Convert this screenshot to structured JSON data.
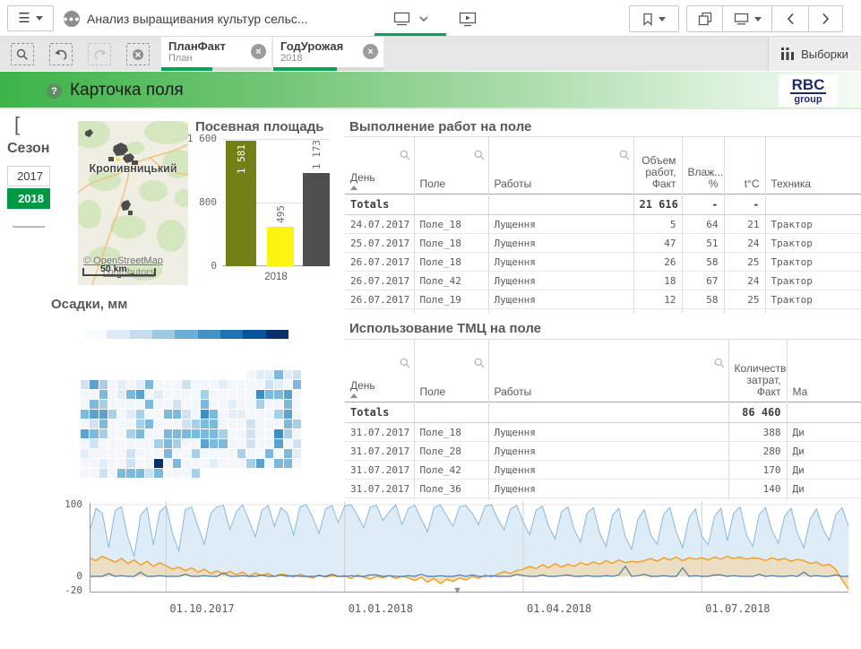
{
  "toolbar": {
    "app_title": "Анализ выращивания культур сельс...",
    "selections_label": "Выборки"
  },
  "selections_bar": {
    "chips": [
      {
        "field": "ПланФакт",
        "value": "План",
        "progress_pct": 46
      },
      {
        "field": "ГодУрожая",
        "value": "2018",
        "progress_pct": 58
      }
    ],
    "close_glyph": "×"
  },
  "sheet_header": {
    "help_glyph": "?",
    "title": "Карточка поля",
    "brand_line1": "RBC",
    "brand_line2": "group"
  },
  "left_bracket": "[",
  "season_filter": {
    "title": "Сезон",
    "options": [
      {
        "label": "2017",
        "selected": false
      },
      {
        "label": "2018",
        "selected": true
      }
    ]
  },
  "map": {
    "city_label": "Кропивницький",
    "attribution_line1": "© OpenStreetMap",
    "attribution_line2": "contributors",
    "scale_label": "50 km"
  },
  "tables": [
    {
      "id": "tbl-works",
      "title": "Выполнение работ на поле",
      "columns": [
        {
          "label": "День",
          "align": "left",
          "search": true,
          "sorted": true
        },
        {
          "label": "Поле",
          "align": "left",
          "search": true
        },
        {
          "label": "Работы",
          "align": "left",
          "search": true
        },
        {
          "label": "Объем\nработ,\nФакт",
          "align": "right"
        },
        {
          "label": "Влаж...\n%",
          "align": "right"
        },
        {
          "label": "t°C",
          "align": "right"
        },
        {
          "label": "Техника",
          "align": "left"
        }
      ],
      "totals": [
        "Totals",
        "",
        "",
        "21 616",
        "-",
        "-",
        ""
      ],
      "rows": [
        [
          "24.07.2017",
          "Поле_18",
          "Лущення",
          "5",
          "64",
          "21",
          "Трактор"
        ],
        [
          "25.07.2017",
          "Поле_18",
          "Лущення",
          "47",
          "51",
          "24",
          "Трактор"
        ],
        [
          "26.07.2017",
          "Поле_18",
          "Лущення",
          "26",
          "58",
          "25",
          "Трактор"
        ],
        [
          "26.07.2017",
          "Поле_42",
          "Лущення",
          "18",
          "67",
          "24",
          "Трактор"
        ],
        [
          "26.07.2017",
          "Поле_19",
          "Лущення",
          "12",
          "58",
          "25",
          "Трактор"
        ],
        [
          "",
          "",
          "",
          "",
          "",
          "",
          ""
        ]
      ]
    },
    {
      "id": "tbl-tmc",
      "title": "Использование ТМЦ на поле",
      "columns": [
        {
          "label": "День",
          "align": "left",
          "search": true,
          "sorted": true
        },
        {
          "label": "Поле",
          "align": "left",
          "search": true
        },
        {
          "label": "Работы",
          "align": "left",
          "search": true,
          "search_right": true
        },
        {
          "label": "Количество\nзатрат,\nФакт",
          "align": "right"
        },
        {
          "label": "Ма",
          "align": "left"
        }
      ],
      "totals": [
        "Totals",
        "",
        "",
        "86 460",
        ""
      ],
      "rows": [
        [
          "31.07.2017",
          "Поле_18",
          "Лущення",
          "388",
          "Ди"
        ],
        [
          "31.07.2017",
          "Поле_28",
          "Лущення",
          "280",
          "Ди"
        ],
        [
          "31.07.2017",
          "Поле_42",
          "Лущення",
          "170",
          "Ди"
        ],
        [
          "31.07.2017",
          "Поле_36",
          "Лущення",
          "140",
          "Ди"
        ],
        [
          "",
          "",
          "",
          "",
          ""
        ]
      ]
    }
  ],
  "chart_data": [
    {
      "id": "sown-area",
      "type": "bar",
      "title": "Посевная площадь",
      "category": "2018",
      "ymax": 1600,
      "y_ticks": [
        {
          "label": "1 600",
          "value": 1600
        },
        {
          "label": "800",
          "value": 800
        },
        {
          "label": "0",
          "value": 0
        }
      ],
      "bars": [
        {
          "label": "1 581",
          "value": 1581,
          "color": "#748015",
          "label_color": "#ffffff",
          "label_inside": true
        },
        {
          "label": "495",
          "value": 495,
          "color": "#fcf313",
          "label_color": "#6a6a6a",
          "label_inside": false
        },
        {
          "label": "1 173",
          "value": 1173,
          "color": "#4f4f4f",
          "label_color": "#6a6a6a",
          "label_inside": false
        }
      ]
    },
    {
      "id": "precip-heatmap",
      "type": "heatmap",
      "title": "Осадки, мм",
      "legend_colors": [
        "#f7fbff",
        "#deebf7",
        "#c6dbef",
        "#9ecae1",
        "#6baed6",
        "#4292c6",
        "#2171b5",
        "#08519c",
        "#08306b"
      ],
      "palette": [
        "#f3f7fb",
        "#e1edf8",
        "#cfe1f3",
        "#a8cfe8",
        "#7db9dd",
        "#5aa2d0",
        "#3d8ec5",
        "#2171b5",
        "#0a519c",
        "#08306b"
      ],
      "rows": [
        "------------------011412",
        "253010140002000100002104",
        "004014501000030000064450",
        "043000040020040010030040",
        "455301300442064011000350",
        "024000340002344000200043",
        "543003400444444300200630",
        "020000003430054400200502",
        "100002000400300003004041",
        "001002009040001000350440",
        "0020444240003-----------"
      ]
    },
    {
      "id": "weather",
      "type": "area-line",
      "y_ticks": [
        {
          "label": "100",
          "value": 100
        },
        {
          "label": "0",
          "value": 0
        },
        {
          "label": "-20",
          "value": -20
        }
      ],
      "ylim": [
        -20,
        105
      ],
      "x_ticks": [
        {
          "label": "01.10.2017",
          "index": 12
        },
        {
          "label": "01.01.2018",
          "index": 40
        },
        {
          "label": "01.04.2018",
          "index": 68
        },
        {
          "label": "01.07.2018",
          "index": 96
        }
      ],
      "series": [
        {
          "name": "humidity",
          "stroke": "#85b8dd",
          "fill": "#daeaf7",
          "values": [
            62,
            95,
            88,
            40,
            92,
            97,
            55,
            28,
            85,
            96,
            44,
            90,
            98,
            60,
            35,
            93,
            97,
            70,
            45,
            88,
            97,
            99,
            65,
            90,
            100,
            78,
            55,
            92,
            99,
            70,
            96,
            88,
            58,
            97,
            100,
            82,
            60,
            94,
            99,
            75,
            98,
            100,
            85,
            68,
            97,
            99,
            78,
            90,
            100,
            72,
            95,
            99,
            80,
            62,
            96,
            100,
            84,
            70,
            97,
            99,
            88,
            72,
            98,
            100,
            80,
            65,
            94,
            99,
            76,
            58,
            92,
            98,
            70,
            52,
            90,
            97,
            65,
            48,
            88,
            96,
            60,
            42,
            85,
            95,
            55,
            38,
            80,
            93,
            58,
            45,
            86,
            96,
            62,
            40,
            82,
            94,
            56,
            44,
            84,
            95,
            50,
            88,
            97,
            58,
            42,
            86,
            96,
            64,
            46,
            84,
            95,
            60,
            40,
            80,
            94,
            66,
            50,
            86,
            96,
            70
          ]
        },
        {
          "name": "temperature",
          "stroke": "#f39c1d",
          "fill": "#efdcb8",
          "values": [
            26,
            22,
            28,
            24,
            20,
            25,
            18,
            23,
            16,
            21,
            14,
            19,
            15,
            10,
            13,
            8,
            12,
            6,
            10,
            4,
            8,
            3,
            7,
            2,
            6,
            0,
            5,
            1,
            4,
            0,
            3,
            2,
            -1,
            3,
            0,
            -2,
            2,
            -1,
            1,
            0,
            1,
            -3,
            2,
            -1,
            -4,
            0,
            -2,
            1,
            -3,
            0,
            -2,
            -6,
            -1,
            -8,
            -3,
            -10,
            -4,
            -7,
            -2,
            -5,
            0,
            -3,
            2,
            -1,
            3,
            7,
            4,
            8,
            10,
            14,
            11,
            16,
            12,
            18,
            13,
            17,
            14,
            19,
            16,
            20,
            17,
            22,
            18,
            23,
            19,
            21,
            20,
            22,
            25,
            21,
            26,
            23,
            27,
            22,
            26,
            24,
            26,
            23,
            27,
            24,
            28,
            25,
            27,
            24,
            26,
            25,
            22,
            26,
            23,
            25,
            21,
            24,
            22,
            18,
            20,
            15,
            17,
            10,
            -5,
            -18
          ]
        },
        {
          "name": "precipitation",
          "stroke": "#4a78ad",
          "fill": "none",
          "values": [
            0,
            0,
            0,
            4,
            0,
            1,
            0,
            0,
            6,
            0,
            0,
            1,
            0,
            0,
            0,
            3,
            0,
            0,
            1,
            0,
            0,
            5,
            0,
            0,
            1,
            0,
            0,
            2,
            0,
            0,
            2,
            0,
            1,
            0,
            0,
            0,
            1,
            0,
            3,
            0,
            0,
            1,
            0,
            0,
            2,
            2,
            0,
            1,
            0,
            0,
            1,
            0,
            3,
            0,
            0,
            1,
            0,
            0,
            2,
            0,
            2,
            0,
            0,
            1,
            0,
            0,
            0,
            3,
            1,
            0,
            0,
            2,
            0,
            0,
            1,
            2,
            0,
            0,
            1,
            0,
            0,
            1,
            0,
            2,
            14,
            0,
            1,
            3,
            0,
            0,
            1,
            0,
            0,
            12,
            0,
            1,
            0,
            0,
            2,
            2,
            0,
            1,
            0,
            0,
            0,
            3,
            0,
            1,
            0,
            0,
            1,
            0,
            6,
            0,
            1,
            0,
            0,
            2,
            0,
            0
          ]
        }
      ]
    }
  ]
}
